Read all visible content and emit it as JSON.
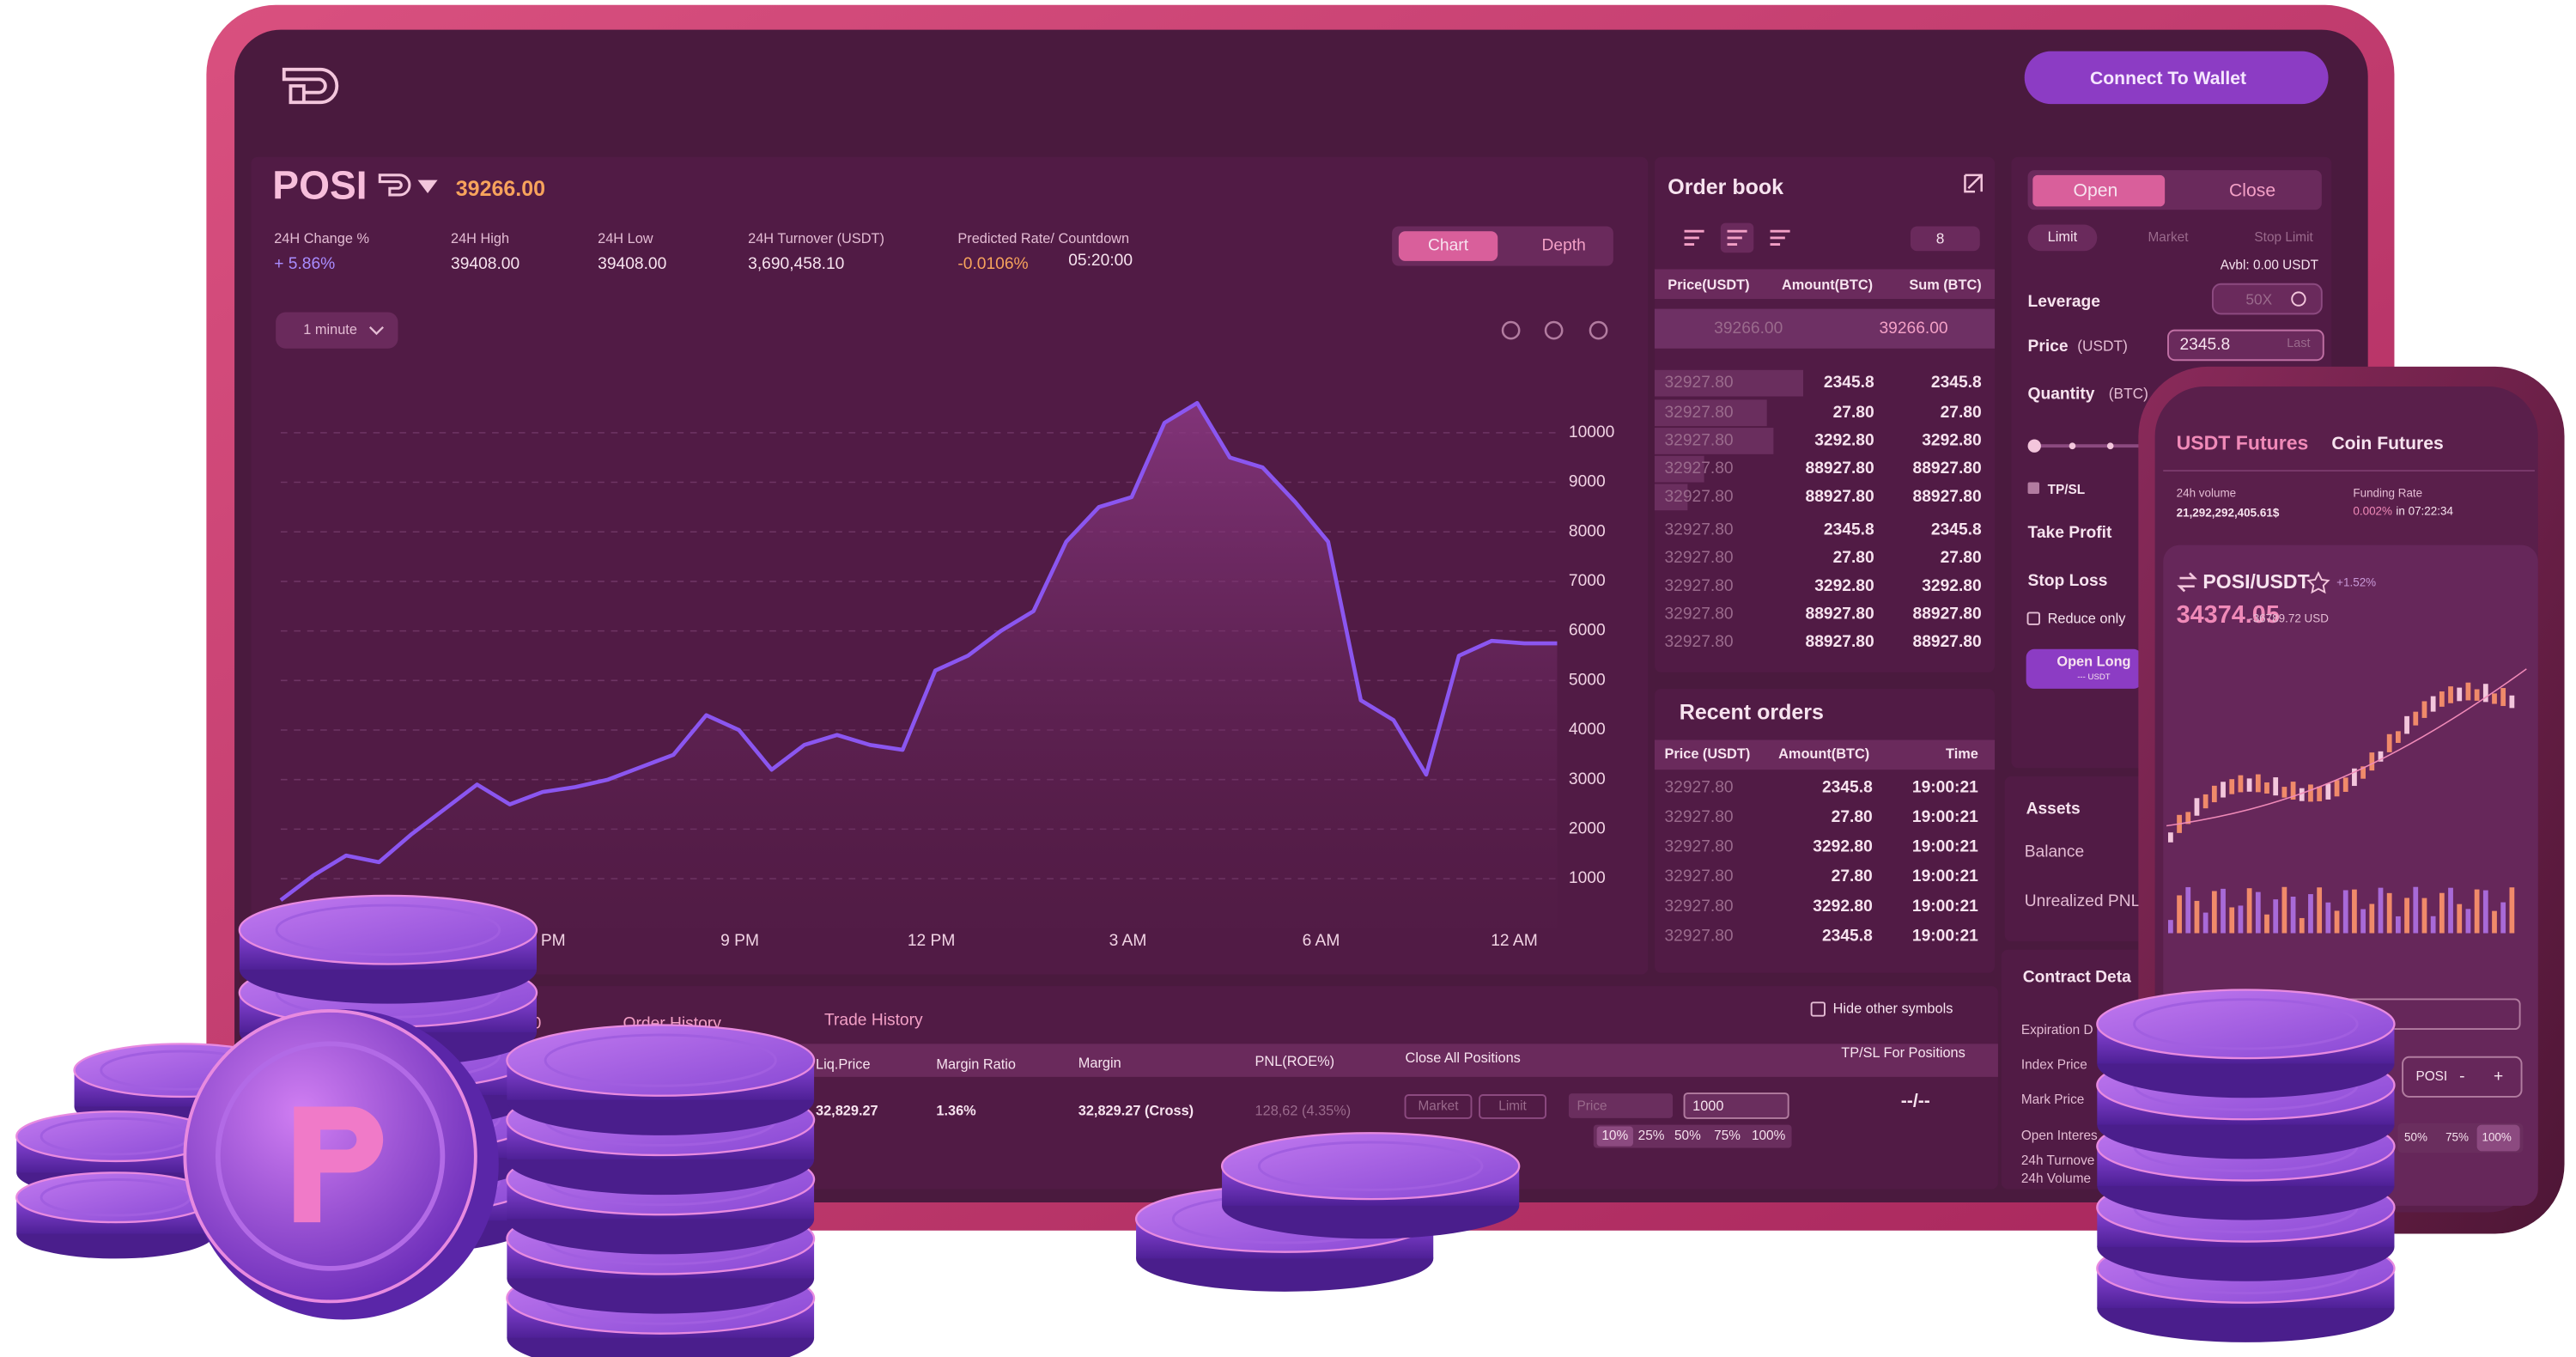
{
  "header": {
    "connect_button": "Connect To Wallet"
  },
  "ticker": {
    "symbol": "POSI",
    "price": "39266.00",
    "stats": [
      {
        "label": "24H Change %",
        "value": "+ 5.86%"
      },
      {
        "label": "24H High",
        "value": "39408.00"
      },
      {
        "label": "24H Low",
        "value": "39408.00"
      },
      {
        "label": "24H Turnover (USDT)",
        "value": "3,690,458.10"
      },
      {
        "label": "Predicted Rate/ Countdown",
        "value": "-0.0106%",
        "countdown": "05:20:00"
      }
    ]
  },
  "chart_panel": {
    "tabs": [
      "Chart",
      "Depth"
    ],
    "interval": "1 minute",
    "ylim": [
      0,
      11000
    ],
    "yticks": [
      1000,
      2000,
      3000,
      4000,
      5000,
      6000,
      7000,
      8000,
      9000,
      10000
    ],
    "xlabels": [
      "PM",
      "9 PM",
      "12 PM",
      "3 AM",
      "6 AM",
      "12 AM"
    ],
    "values": [
      567,
      1067,
      1467,
      1333,
      1900,
      2400,
      2900,
      2500,
      2750,
      2850,
      3000,
      3250,
      3500,
      4300,
      4000,
      3200,
      3700,
      3900,
      3700,
      3600,
      5200,
      5500,
      6000,
      6400,
      7800,
      8500,
      8700,
      10200,
      10600,
      9500,
      9300,
      8600,
      7800,
      4600,
      4200,
      3100,
      5500,
      5800,
      5750,
      5750
    ]
  },
  "order_book": {
    "title": "Order book",
    "depth": "8",
    "columns": [
      "Price(USDT)",
      "Amount(BTC)",
      "Sum (BTC)"
    ],
    "last_price": "39266.00",
    "mark_price": "39266.00",
    "rows": [
      [
        "32927.80",
        "2345.8",
        "2345.8"
      ],
      [
        "32927.80",
        "27.80",
        "27.80"
      ],
      [
        "32927.80",
        "3292.80",
        "3292.80"
      ],
      [
        "32927.80",
        "88927.80",
        "88927.80"
      ],
      [
        "32927.80",
        "88927.80",
        "88927.80"
      ],
      [
        "32927.80",
        "2345.8",
        "2345.8"
      ],
      [
        "32927.80",
        "27.80",
        "27.80"
      ],
      [
        "32927.80",
        "3292.80",
        "3292.80"
      ],
      [
        "32927.80",
        "88927.80",
        "88927.80"
      ],
      [
        "32927.80",
        "88927.80",
        "88927.80"
      ]
    ]
  },
  "recent_orders": {
    "title": "Recent orders",
    "columns": [
      "Price (USDT)",
      "Amount(BTC)",
      "Time"
    ],
    "rows": [
      [
        "32927.80",
        "2345.8",
        "19:00:21"
      ],
      [
        "32927.80",
        "27.80",
        "19:00:21"
      ],
      [
        "32927.80",
        "3292.80",
        "19:00:21"
      ],
      [
        "32927.80",
        "27.80",
        "19:00:21"
      ],
      [
        "32927.80",
        "3292.80",
        "19:00:21"
      ],
      [
        "32927.80",
        "2345.8",
        "19:00:21"
      ]
    ]
  },
  "order_form": {
    "tabs": [
      "Open",
      "Close"
    ],
    "order_types": [
      "Limit",
      "Market",
      "Stop Limit"
    ],
    "available": "Avbl: 0.00 USDT",
    "leverage_label": "Leverage",
    "leverage": "50X",
    "price_label": "Price",
    "price_unit": "(USDT)",
    "price": "2345.8",
    "price_hint": "Last",
    "quantity_label": "Quantity",
    "quantity_unit": "(BTC)",
    "tpsl": "TP/SL",
    "take_profit": "Take Profit",
    "stop_loss": "Stop Loss",
    "reduce_only": "Reduce only",
    "open_long": "Open Long",
    "open_long_sub": "--- USDT"
  },
  "assets": {
    "title": "Assets",
    "balance": "Balance",
    "unrealized": "Unrealized PNL"
  },
  "contract": {
    "title": "Contract Deta",
    "rows": [
      "Expiration D",
      "Index Price",
      "Mark Price",
      "Open Interes",
      "24h Turnove",
      "24h Volume"
    ]
  },
  "positions": {
    "tabs": [
      "0",
      "Order History",
      "Trade History"
    ],
    "hide_other": "Hide other symbols",
    "columns": [
      "Liq.Price",
      "Margin Ratio",
      "Margin",
      "PNL(ROE%)",
      "Close All Positions",
      "TP/SL For Positions"
    ],
    "row": [
      "32,829.27",
      "1.36%",
      "32,829.27 (Cross)",
      "128,62 (4.35%)"
    ],
    "buttons": [
      "Market",
      "Limit"
    ],
    "price_placeholder": "Price",
    "amount": "1000",
    "percents": [
      "10%",
      "25%",
      "50%",
      "75%",
      "100%"
    ],
    "tpsl_value": "--/--"
  },
  "mobile": {
    "tabs": [
      "USDT Futures",
      "Coin Futures"
    ],
    "volume_label": "24h volume",
    "volume": "21,292,292,405.61$",
    "funding_label": "Funding Rate",
    "funding_rate": "0.002%",
    "funding_time": "in 07:22:34",
    "pair": "POSI/USDT",
    "change": "+1.52%",
    "price": "34374.05",
    "price_usd": "-36789.72 USD",
    "symbol": "POSI",
    "minus": "-",
    "plus": "+",
    "percents": [
      "50%",
      "75%",
      "100%"
    ]
  }
}
